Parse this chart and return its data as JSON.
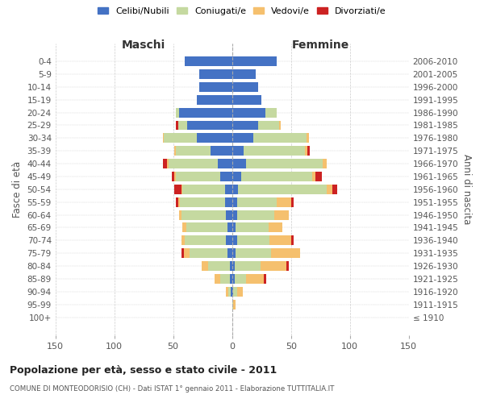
{
  "age_groups": [
    "100+",
    "95-99",
    "90-94",
    "85-89",
    "80-84",
    "75-79",
    "70-74",
    "65-69",
    "60-64",
    "55-59",
    "50-54",
    "45-49",
    "40-44",
    "35-39",
    "30-34",
    "25-29",
    "20-24",
    "15-19",
    "10-14",
    "5-9",
    "0-4"
  ],
  "birth_years": [
    "≤ 1910",
    "1911-1915",
    "1916-1920",
    "1921-1925",
    "1926-1930",
    "1931-1935",
    "1936-1940",
    "1941-1945",
    "1946-1950",
    "1951-1955",
    "1956-1960",
    "1961-1965",
    "1966-1970",
    "1971-1975",
    "1976-1980",
    "1981-1985",
    "1986-1990",
    "1991-1995",
    "1996-2000",
    "2001-2005",
    "2006-2010"
  ],
  "maschi_celibe": [
    0,
    0,
    1,
    2,
    2,
    4,
    5,
    4,
    5,
    6,
    6,
    10,
    12,
    18,
    30,
    38,
    45,
    30,
    28,
    28,
    40
  ],
  "maschi_coniugato": [
    0,
    0,
    2,
    8,
    18,
    32,
    35,
    35,
    38,
    38,
    36,
    38,
    42,
    30,
    28,
    8,
    3,
    0,
    0,
    0,
    0
  ],
  "maschi_vedovo": [
    0,
    0,
    2,
    5,
    6,
    5,
    3,
    3,
    2,
    2,
    1,
    1,
    1,
    1,
    1,
    0,
    0,
    0,
    0,
    0,
    0
  ],
  "maschi_divorziato": [
    0,
    0,
    0,
    0,
    0,
    2,
    0,
    0,
    0,
    2,
    6,
    2,
    4,
    0,
    0,
    2,
    0,
    0,
    0,
    0,
    0
  ],
  "femmine_celibe": [
    0,
    0,
    1,
    2,
    2,
    3,
    4,
    3,
    4,
    4,
    5,
    8,
    12,
    10,
    18,
    22,
    28,
    25,
    22,
    20,
    38
  ],
  "femmine_coniugato": [
    0,
    1,
    3,
    10,
    22,
    30,
    28,
    28,
    32,
    34,
    75,
    60,
    65,
    52,
    45,
    18,
    10,
    0,
    0,
    0,
    0
  ],
  "femmine_vedovo": [
    0,
    2,
    5,
    15,
    22,
    25,
    18,
    12,
    12,
    12,
    5,
    3,
    3,
    2,
    2,
    1,
    0,
    0,
    0,
    0,
    0
  ],
  "femmine_divorziato": [
    0,
    0,
    0,
    2,
    2,
    0,
    2,
    0,
    0,
    2,
    4,
    5,
    0,
    2,
    0,
    0,
    0,
    0,
    0,
    0,
    0
  ],
  "colors": {
    "celibe": "#4472c4",
    "coniugato": "#c5d9a0",
    "vedovo": "#f5c06e",
    "divorziato": "#cc2222"
  },
  "title": "Popolazione per età, sesso e stato civile - 2011",
  "subtitle": "COMUNE DI MONTEODORISIO (CH) - Dati ISTAT 1° gennaio 2011 - Elaborazione TUTTITALIA.IT",
  "xlabel_left": "Maschi",
  "xlabel_right": "Femmine",
  "ylabel_left": "Fasce di età",
  "ylabel_right": "Anni di nascita",
  "xlim": 150,
  "legend_labels": [
    "Celibi/Nubili",
    "Coniugati/e",
    "Vedovi/e",
    "Divorziati/e"
  ],
  "background_color": "#ffffff",
  "grid_color": "#cccccc"
}
